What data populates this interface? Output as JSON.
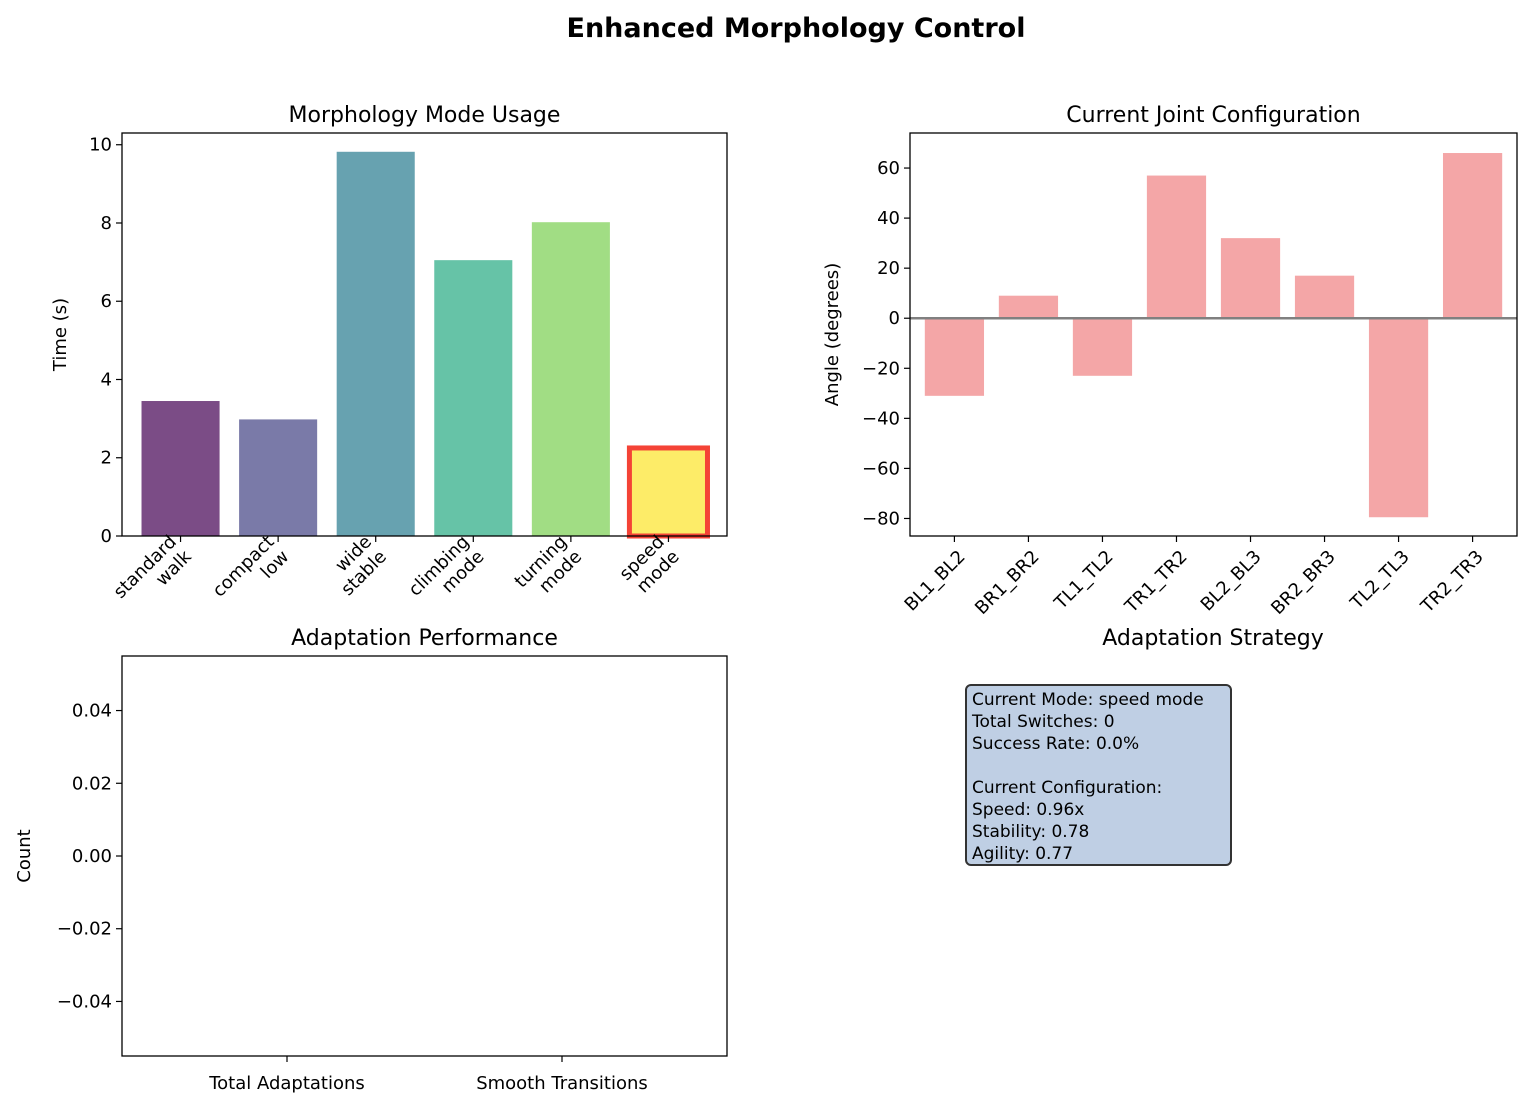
{
  "title": "Enhanced Morphology Control",
  "chart_data": [
    {
      "type": "bar",
      "title": "Morphology Mode Usage",
      "xlabel": "",
      "ylabel": "Time (s)",
      "ylim": [
        0,
        10.3
      ],
      "yticks": [
        0,
        2,
        4,
        6,
        8,
        10
      ],
      "categories": [
        "standard\nwalk",
        "compact\nlow",
        "wide\nstable",
        "climbing\nmode",
        "turning\nmode",
        "speed\nmode"
      ],
      "values": [
        3.45,
        2.98,
        9.82,
        7.05,
        8.02,
        2.25
      ],
      "colors": [
        "#7b4c86",
        "#7a7aa8",
        "#67a2b0",
        "#66c3a7",
        "#a1dd84",
        "#fdec68"
      ],
      "highlighted": "speed\nmode",
      "highlight_color": "#f44336"
    },
    {
      "type": "bar",
      "title": "Current Joint Configuration",
      "xlabel": "",
      "ylabel": "Angle (degrees)",
      "ylim": [
        -87,
        74
      ],
      "yticks": [
        -80,
        -60,
        -40,
        -20,
        0,
        20,
        40,
        60
      ],
      "categories": [
        "BL1_BL2",
        "BR1_BR2",
        "TL1_TL2",
        "TR1_TR2",
        "BL2_BL3",
        "BR2_BR3",
        "TL2_TL3",
        "TR2_TR3"
      ],
      "values": [
        -31,
        9,
        -23,
        57,
        32,
        17,
        -79.5,
        66
      ],
      "color": "#f4a6a7",
      "zero_line_color": "#808080"
    },
    {
      "type": "bar",
      "title": "Adaptation Performance",
      "xlabel": "",
      "ylabel": "Count",
      "ylim": [
        -0.055,
        0.055
      ],
      "yticks": [
        -0.04,
        -0.02,
        0.0,
        0.02,
        0.04
      ],
      "ytick_labels": [
        "−0.04",
        "−0.02",
        "0.00",
        "0.02",
        "0.04"
      ],
      "categories": [
        "Total Adaptations",
        "Smooth Transitions"
      ],
      "values": [
        0,
        0
      ]
    }
  ],
  "strategy": {
    "title": "Adaptation Strategy",
    "text": "Current Mode: speed mode\nTotal Switches: 0\nSuccess Rate: 0.0%\n\nCurrent Configuration:\nSpeed: 0.96x\nStability: 0.78\nAgility: 0.77"
  }
}
